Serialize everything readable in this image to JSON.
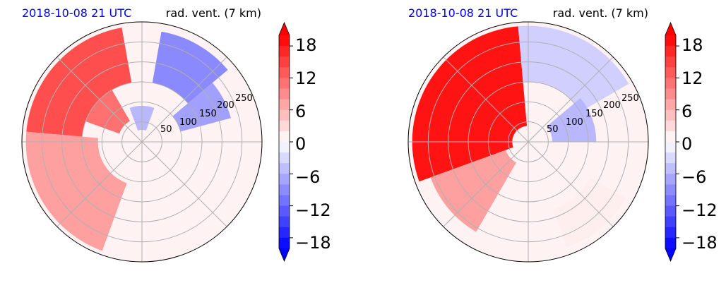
{
  "chart_data": [
    {
      "type": "heatmap",
      "title_left": "2018-10-08 21 UTC",
      "title_right": "rad. vent. (7 km)",
      "projection": "polar",
      "radial_labels": [
        "50",
        "100",
        "150",
        "200",
        "250"
      ],
      "radial_values": [
        50,
        100,
        150,
        200,
        250
      ],
      "colorbar": {
        "ticks": [
          "18",
          "12",
          "6",
          "0",
          "−6",
          "−12",
          "−18"
        ],
        "range": [
          -20,
          20
        ],
        "cmap": "bwr",
        "extend": "both"
      },
      "regions": [
        {
          "theta": [
            100,
            175
          ],
          "r": [
            150,
            290
          ],
          "value": 15
        },
        {
          "theta": [
            120,
            160
          ],
          "r": [
            60,
            150
          ],
          "value": 12
        },
        {
          "theta": [
            175,
            250
          ],
          "r": [
            110,
            290
          ],
          "value": 8
        },
        {
          "theta": [
            40,
            80
          ],
          "r": [
            150,
            280
          ],
          "value": -10
        },
        {
          "theta": [
            15,
            40
          ],
          "r": [
            100,
            230
          ],
          "value": -8
        },
        {
          "theta": [
            70,
            110
          ],
          "r": [
            30,
            90
          ],
          "value": -6
        },
        {
          "theta": [
            250,
            340
          ],
          "r": [
            60,
            280
          ],
          "value": 1
        }
      ]
    },
    {
      "type": "heatmap",
      "title_left": "2018-10-08 21 UTC",
      "title_right": "rad. vent. (7 km)",
      "projection": "polar",
      "radial_labels": [
        "50",
        "100",
        "150",
        "200",
        "250"
      ],
      "radial_values": [
        50,
        100,
        150,
        200,
        250
      ],
      "colorbar": {
        "ticks": [
          "18",
          "12",
          "6",
          "0",
          "−6",
          "−12",
          "−18"
        ],
        "range": [
          -20,
          20
        ],
        "cmap": "bwr",
        "extend": "both"
      },
      "regions": [
        {
          "theta": [
            95,
            200
          ],
          "r": [
            40,
            290
          ],
          "value": 20
        },
        {
          "theta": [
            200,
            240
          ],
          "r": [
            60,
            260
          ],
          "value": 8
        },
        {
          "theta": [
            30,
            95
          ],
          "r": [
            150,
            290
          ],
          "value": -4
        },
        {
          "theta": [
            0,
            40
          ],
          "r": [
            60,
            170
          ],
          "value": -6
        },
        {
          "theta": [
            290,
            330
          ],
          "r": [
            180,
            280
          ],
          "value": 5
        },
        {
          "theta": [
            240,
            360
          ],
          "r": [
            30,
            280
          ],
          "value": 1
        }
      ]
    }
  ]
}
